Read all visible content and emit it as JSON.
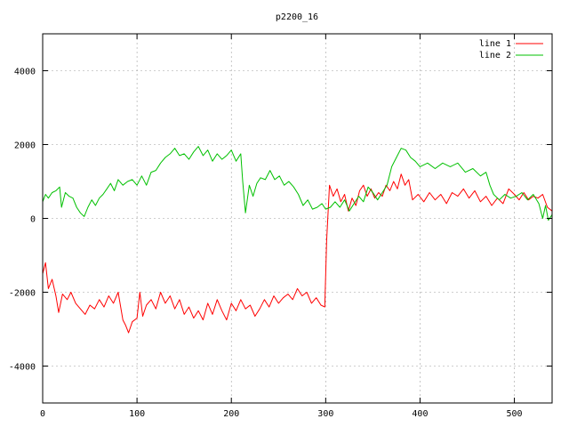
{
  "chart_data": {
    "type": "line",
    "title": "p2200_16",
    "xlabel": "",
    "ylabel": "",
    "xlim": [
      0,
      540
    ],
    "ylim": [
      -5000,
      5000
    ],
    "xticks": [
      0,
      100,
      200,
      300,
      400,
      500
    ],
    "yticks": [
      -4000,
      -2000,
      0,
      2000,
      4000
    ],
    "grid": true,
    "legend_position": "top-right",
    "series": [
      {
        "name": "line 1",
        "color": "#ff0000",
        "points": [
          [
            0,
            -1500
          ],
          [
            3,
            -1200
          ],
          [
            6,
            -1900
          ],
          [
            10,
            -1650
          ],
          [
            14,
            -2100
          ],
          [
            17,
            -2550
          ],
          [
            21,
            -2050
          ],
          [
            26,
            -2200
          ],
          [
            30,
            -2000
          ],
          [
            35,
            -2300
          ],
          [
            40,
            -2450
          ],
          [
            45,
            -2600
          ],
          [
            50,
            -2350
          ],
          [
            55,
            -2450
          ],
          [
            60,
            -2200
          ],
          [
            65,
            -2400
          ],
          [
            70,
            -2100
          ],
          [
            75,
            -2300
          ],
          [
            80,
            -2000
          ],
          [
            85,
            -2750
          ],
          [
            88,
            -2900
          ],
          [
            91,
            -3100
          ],
          [
            95,
            -2800
          ],
          [
            100,
            -2700
          ],
          [
            103,
            -2000
          ],
          [
            106,
            -2650
          ],
          [
            110,
            -2350
          ],
          [
            115,
            -2200
          ],
          [
            120,
            -2450
          ],
          [
            125,
            -2000
          ],
          [
            130,
            -2300
          ],
          [
            135,
            -2100
          ],
          [
            140,
            -2450
          ],
          [
            145,
            -2200
          ],
          [
            150,
            -2600
          ],
          [
            155,
            -2400
          ],
          [
            160,
            -2700
          ],
          [
            165,
            -2500
          ],
          [
            170,
            -2750
          ],
          [
            175,
            -2300
          ],
          [
            180,
            -2600
          ],
          [
            185,
            -2200
          ],
          [
            190,
            -2500
          ],
          [
            195,
            -2750
          ],
          [
            200,
            -2300
          ],
          [
            205,
            -2500
          ],
          [
            210,
            -2200
          ],
          [
            215,
            -2450
          ],
          [
            220,
            -2350
          ],
          [
            225,
            -2650
          ],
          [
            230,
            -2450
          ],
          [
            235,
            -2200
          ],
          [
            240,
            -2400
          ],
          [
            245,
            -2100
          ],
          [
            250,
            -2300
          ],
          [
            255,
            -2150
          ],
          [
            260,
            -2050
          ],
          [
            265,
            -2200
          ],
          [
            270,
            -1900
          ],
          [
            275,
            -2100
          ],
          [
            280,
            -2000
          ],
          [
            285,
            -2300
          ],
          [
            290,
            -2150
          ],
          [
            295,
            -2350
          ],
          [
            299,
            -2400
          ],
          [
            301,
            -600
          ],
          [
            304,
            900
          ],
          [
            308,
            600
          ],
          [
            312,
            800
          ],
          [
            316,
            450
          ],
          [
            320,
            650
          ],
          [
            324,
            200
          ],
          [
            328,
            550
          ],
          [
            332,
            350
          ],
          [
            336,
            750
          ],
          [
            340,
            900
          ],
          [
            344,
            600
          ],
          [
            348,
            800
          ],
          [
            352,
            550
          ],
          [
            356,
            700
          ],
          [
            360,
            600
          ],
          [
            364,
            900
          ],
          [
            368,
            750
          ],
          [
            372,
            1000
          ],
          [
            376,
            800
          ],
          [
            380,
            1200
          ],
          [
            384,
            900
          ],
          [
            388,
            1050
          ],
          [
            392,
            500
          ],
          [
            398,
            650
          ],
          [
            404,
            450
          ],
          [
            410,
            700
          ],
          [
            416,
            500
          ],
          [
            422,
            650
          ],
          [
            428,
            400
          ],
          [
            434,
            700
          ],
          [
            440,
            600
          ],
          [
            446,
            800
          ],
          [
            452,
            550
          ],
          [
            458,
            750
          ],
          [
            464,
            450
          ],
          [
            470,
            600
          ],
          [
            476,
            350
          ],
          [
            482,
            550
          ],
          [
            488,
            400
          ],
          [
            494,
            800
          ],
          [
            500,
            650
          ],
          [
            505,
            500
          ],
          [
            510,
            700
          ],
          [
            515,
            500
          ],
          [
            520,
            600
          ],
          [
            525,
            550
          ],
          [
            530,
            650
          ],
          [
            535,
            300
          ],
          [
            540,
            200
          ]
        ]
      },
      {
        "name": "line 2",
        "color": "#00c000",
        "points": [
          [
            0,
            450
          ],
          [
            3,
            650
          ],
          [
            6,
            550
          ],
          [
            10,
            700
          ],
          [
            14,
            750
          ],
          [
            18,
            850
          ],
          [
            20,
            300
          ],
          [
            24,
            700
          ],
          [
            28,
            600
          ],
          [
            32,
            550
          ],
          [
            36,
            300
          ],
          [
            40,
            150
          ],
          [
            44,
            50
          ],
          [
            48,
            300
          ],
          [
            52,
            500
          ],
          [
            56,
            350
          ],
          [
            60,
            550
          ],
          [
            64,
            650
          ],
          [
            68,
            800
          ],
          [
            72,
            950
          ],
          [
            76,
            750
          ],
          [
            80,
            1050
          ],
          [
            85,
            900
          ],
          [
            90,
            1000
          ],
          [
            95,
            1050
          ],
          [
            100,
            900
          ],
          [
            105,
            1150
          ],
          [
            110,
            900
          ],
          [
            115,
            1250
          ],
          [
            120,
            1300
          ],
          [
            125,
            1500
          ],
          [
            130,
            1650
          ],
          [
            135,
            1750
          ],
          [
            140,
            1900
          ],
          [
            145,
            1700
          ],
          [
            150,
            1750
          ],
          [
            155,
            1600
          ],
          [
            160,
            1800
          ],
          [
            165,
            1950
          ],
          [
            170,
            1700
          ],
          [
            175,
            1850
          ],
          [
            180,
            1550
          ],
          [
            185,
            1750
          ],
          [
            190,
            1600
          ],
          [
            195,
            1700
          ],
          [
            200,
            1850
          ],
          [
            205,
            1550
          ],
          [
            210,
            1750
          ],
          [
            212,
            1000
          ],
          [
            215,
            150
          ],
          [
            219,
            900
          ],
          [
            223,
            600
          ],
          [
            227,
            950
          ],
          [
            231,
            1100
          ],
          [
            236,
            1050
          ],
          [
            241,
            1300
          ],
          [
            246,
            1050
          ],
          [
            251,
            1150
          ],
          [
            256,
            900
          ],
          [
            261,
            1000
          ],
          [
            266,
            850
          ],
          [
            271,
            650
          ],
          [
            276,
            350
          ],
          [
            281,
            500
          ],
          [
            286,
            250
          ],
          [
            291,
            300
          ],
          [
            296,
            400
          ],
          [
            300,
            250
          ],
          [
            305,
            300
          ],
          [
            310,
            450
          ],
          [
            315,
            300
          ],
          [
            320,
            500
          ],
          [
            325,
            200
          ],
          [
            330,
            400
          ],
          [
            335,
            600
          ],
          [
            340,
            450
          ],
          [
            345,
            850
          ],
          [
            350,
            700
          ],
          [
            355,
            500
          ],
          [
            360,
            700
          ],
          [
            365,
            900
          ],
          [
            370,
            1400
          ],
          [
            375,
            1650
          ],
          [
            380,
            1900
          ],
          [
            385,
            1850
          ],
          [
            390,
            1650
          ],
          [
            395,
            1550
          ],
          [
            400,
            1400
          ],
          [
            408,
            1500
          ],
          [
            416,
            1350
          ],
          [
            424,
            1500
          ],
          [
            432,
            1400
          ],
          [
            440,
            1500
          ],
          [
            448,
            1250
          ],
          [
            456,
            1350
          ],
          [
            464,
            1150
          ],
          [
            470,
            1250
          ],
          [
            474,
            900
          ],
          [
            478,
            650
          ],
          [
            484,
            500
          ],
          [
            490,
            650
          ],
          [
            496,
            550
          ],
          [
            502,
            600
          ],
          [
            508,
            700
          ],
          [
            514,
            500
          ],
          [
            520,
            650
          ],
          [
            526,
            400
          ],
          [
            530,
            0
          ],
          [
            533,
            350
          ],
          [
            536,
            -50
          ],
          [
            540,
            100
          ]
        ]
      }
    ]
  }
}
